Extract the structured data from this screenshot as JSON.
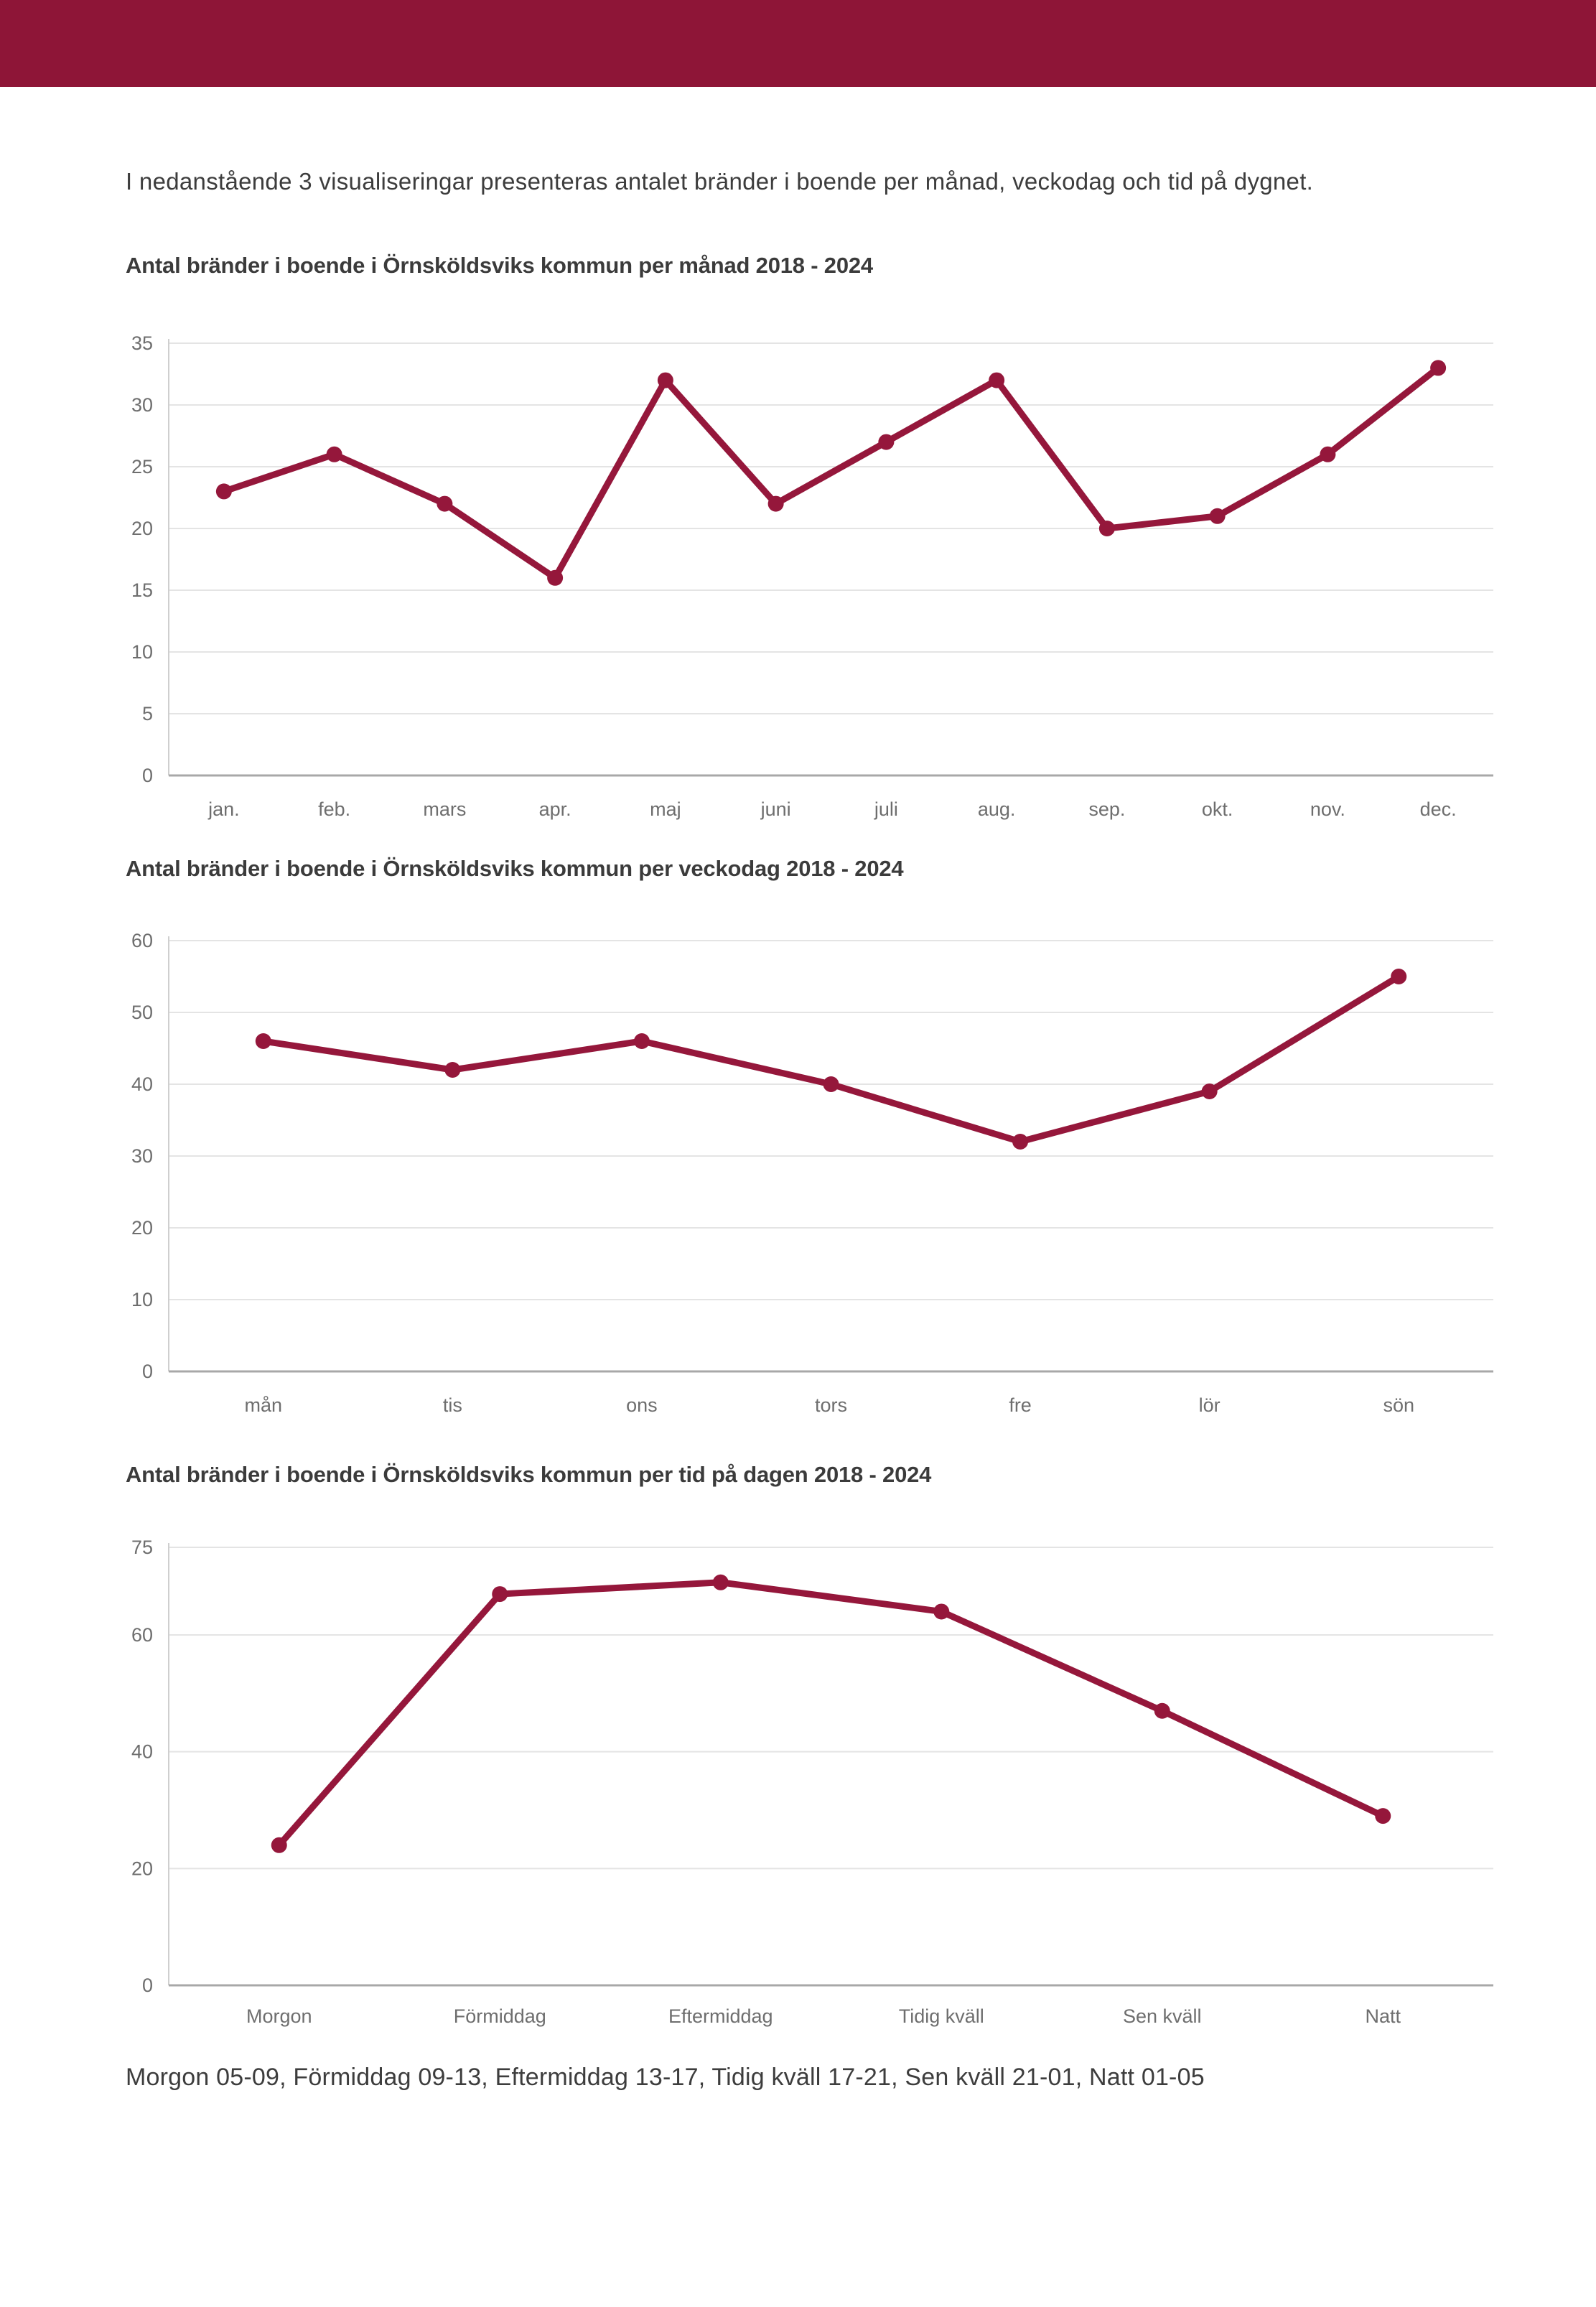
{
  "page": {
    "intro": "I nedanstående 3 visualiseringar presenteras antalet bränder i boende per månad, veckodag och tid på dygnet.",
    "footer_note": "Morgon 05-09, Förmiddag 09-13, Eftermiddag 13-17, Tidig kväll 17-21, Sen kväll 21-01, Natt 01-05"
  },
  "colors": {
    "banner": "#8e1537",
    "series": "#95173b",
    "gridline": "#e4e4e4",
    "axis_bottom": "#a8a8a8",
    "axis_left": "#cfcfcf",
    "tick_text": "#6e6e6e",
    "body_text": "#3d3d3d"
  },
  "chart_data": [
    {
      "type": "line",
      "title": "Antal bränder i boende i Örnsköldsviks kommun per månad 2018 - 2024",
      "categories": [
        "jan.",
        "feb.",
        "mars",
        "apr.",
        "maj",
        "juni",
        "juli",
        "aug.",
        "sep.",
        "okt.",
        "nov.",
        "dec."
      ],
      "values": [
        23,
        26,
        22,
        16,
        32,
        22,
        27,
        32,
        20,
        21,
        26,
        33
      ],
      "xlabel": "",
      "ylabel": "",
      "ylim": [
        0,
        35
      ],
      "y_ticks": [
        0,
        5,
        10,
        15,
        20,
        25,
        30,
        35
      ],
      "grid": true,
      "legend": "none"
    },
    {
      "type": "line",
      "title": "Antal bränder i boende i Örnsköldsviks kommun per veckodag 2018 - 2024",
      "categories": [
        "mån",
        "tis",
        "ons",
        "tors",
        "fre",
        "lör",
        "sön"
      ],
      "values": [
        46,
        42,
        46,
        40,
        32,
        39,
        55
      ],
      "xlabel": "",
      "ylabel": "",
      "ylim": [
        0,
        60
      ],
      "y_ticks": [
        0,
        10,
        20,
        30,
        40,
        50,
        60
      ],
      "grid": true,
      "legend": "none"
    },
    {
      "type": "line",
      "title": "Antal bränder i boende i Örnsköldsviks kommun per tid på dagen 2018 - 2024",
      "categories": [
        "Morgon",
        "Förmiddag",
        "Eftermiddag",
        "Tidig kväll",
        "Sen kväll",
        "Natt"
      ],
      "values": [
        24,
        67,
        69,
        64,
        47,
        29
      ],
      "xlabel": "",
      "ylabel": "",
      "ylim": [
        0,
        75
      ],
      "y_ticks": [
        0,
        20,
        40,
        60,
        75
      ],
      "grid": true,
      "legend": "none"
    }
  ]
}
